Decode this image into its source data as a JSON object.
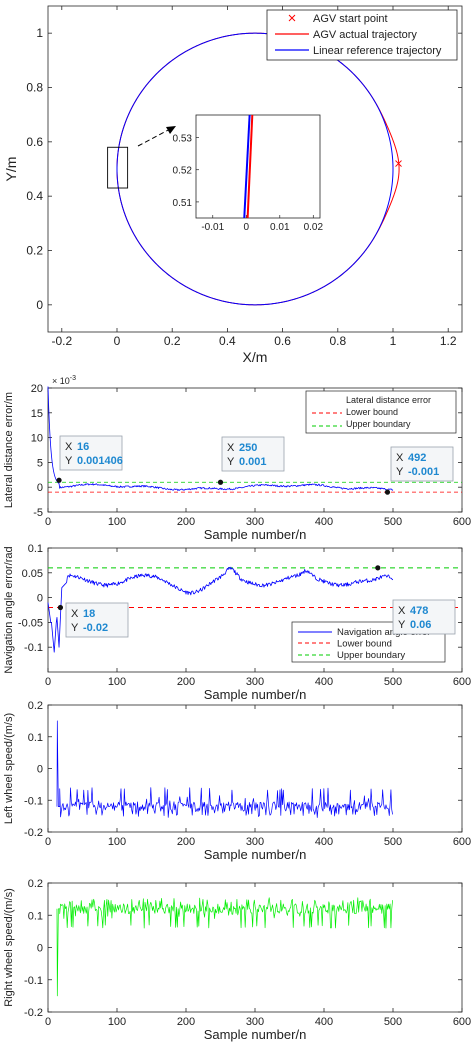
{
  "chart_data": [
    {
      "type": "line",
      "xlabel": "X/m",
      "ylabel": "Y/m",
      "xlim": [
        -0.25,
        1.25
      ],
      "ylim": [
        -0.1,
        1.1
      ],
      "xticks": [
        "-0.2",
        "0",
        "0.2",
        "0.4",
        "0.6",
        "0.8",
        "1",
        "1.2"
      ],
      "yticks": [
        "0",
        "0.2",
        "0.4",
        "0.6",
        "0.8",
        "1"
      ],
      "legend": {
        "placement": "top-right",
        "entries": [
          "AGV start point",
          "AGV actual trajectory",
          "Linear reference trajectory"
        ]
      },
      "circle": {
        "center": [
          0.5,
          0.5
        ],
        "radius": 0.5
      },
      "start_point": [
        1.02,
        0.52
      ],
      "series": [
        {
          "name": "AGV actual trajectory",
          "color": "#ff0000"
        },
        {
          "name": "Linear reference trajectory",
          "color": "#0000ff"
        }
      ],
      "zoom_region": {
        "x": [
          -0.005,
          0.015
        ],
        "y": [
          0.43,
          0.58
        ]
      },
      "inset": {
        "xticks": [
          "-0.01",
          "0",
          "0.01",
          "0.02"
        ],
        "yticks": [
          "0.51",
          "0.52",
          "0.53"
        ],
        "xlim": [
          -0.015,
          0.022
        ],
        "ylim": [
          0.505,
          0.537
        ]
      }
    },
    {
      "type": "line",
      "xlabel": "Sample number/n",
      "ylabel": "Lateral distance error/m",
      "exponent_label": "× 10",
      "exponent_power": "-3",
      "xlim": [
        0,
        600
      ],
      "ylim": [
        -5,
        20
      ],
      "xticks": [
        "0",
        "100",
        "200",
        "300",
        "400",
        "500",
        "600"
      ],
      "yticks": [
        "20",
        "15",
        "10",
        "5",
        "0",
        "-5"
      ],
      "legend": {
        "placement": "top-right",
        "entries": [
          "Lateral distance error",
          "Lower bound",
          "Upper boundary"
        ]
      },
      "colors": {
        "series": "#0000ff",
        "lower": "#ff0000",
        "upper": "#00cc00"
      },
      "datatips": [
        {
          "x_label": "X",
          "x": "16",
          "y_label": "Y",
          "y": "0.001406"
        },
        {
          "x_label": "X",
          "x": "250",
          "y_label": "Y",
          "y": "0.001"
        },
        {
          "x_label": "X",
          "x": "492",
          "y_label": "Y",
          "y": "-0.001"
        }
      ]
    },
    {
      "type": "line",
      "xlabel": "Sample number/n",
      "ylabel": "Navigation angle error/rad",
      "xlim": [
        0,
        600
      ],
      "ylim": [
        -0.15,
        0.1
      ],
      "xticks": [
        "0",
        "100",
        "200",
        "300",
        "400",
        "500",
        "600"
      ],
      "yticks": [
        "0.1",
        "0.05",
        "0",
        "-0.05",
        "-0.1"
      ],
      "lower_bound": -0.02,
      "upper_bound": 0.06,
      "legend": {
        "placement": "bottom-right",
        "entries": [
          "Navigation angle error",
          "Lower bound",
          "Upper boundary"
        ]
      },
      "colors": {
        "series": "#0000ff",
        "lower": "#ff0000",
        "upper": "#00cc00"
      },
      "datatips": [
        {
          "x_label": "X",
          "x": "18",
          "y_label": "Y",
          "y": "-0.02"
        },
        {
          "x_label": "X",
          "x": "478",
          "y_label": "Y",
          "y": "0.06"
        }
      ]
    },
    {
      "type": "line",
      "xlabel": "Sample number/n",
      "ylabel": "Left wheel speed/(m/s)",
      "xlim": [
        0,
        600
      ],
      "ylim": [
        -0.2,
        0.2
      ],
      "xticks": [
        "0",
        "100",
        "200",
        "300",
        "400",
        "500",
        "600"
      ],
      "yticks": [
        "0.2",
        "0.1",
        "0",
        "-0.1",
        "-0.2"
      ],
      "colors": {
        "series": "#0000ff"
      },
      "signal": {
        "start_x": 13,
        "end_x": 500,
        "initial_peak": 0.15,
        "base": -0.12,
        "band_low": -0.15,
        "band_high": -0.06
      }
    },
    {
      "type": "line",
      "xlabel": "Sample number/n",
      "ylabel": "Right wheel speed/(m/s)",
      "xlim": [
        0,
        600
      ],
      "ylim": [
        -0.2,
        0.2
      ],
      "xticks": [
        "0",
        "100",
        "200",
        "300",
        "400",
        "500",
        "600"
      ],
      "yticks": [
        "0.2",
        "0.1",
        "0",
        "-0.1",
        "-0.2"
      ],
      "colors": {
        "series": "#00ee00"
      },
      "signal": {
        "start_x": 13,
        "end_x": 500,
        "initial_peak": -0.15,
        "base": 0.12,
        "band_low": 0.06,
        "band_high": 0.15
      }
    }
  ]
}
